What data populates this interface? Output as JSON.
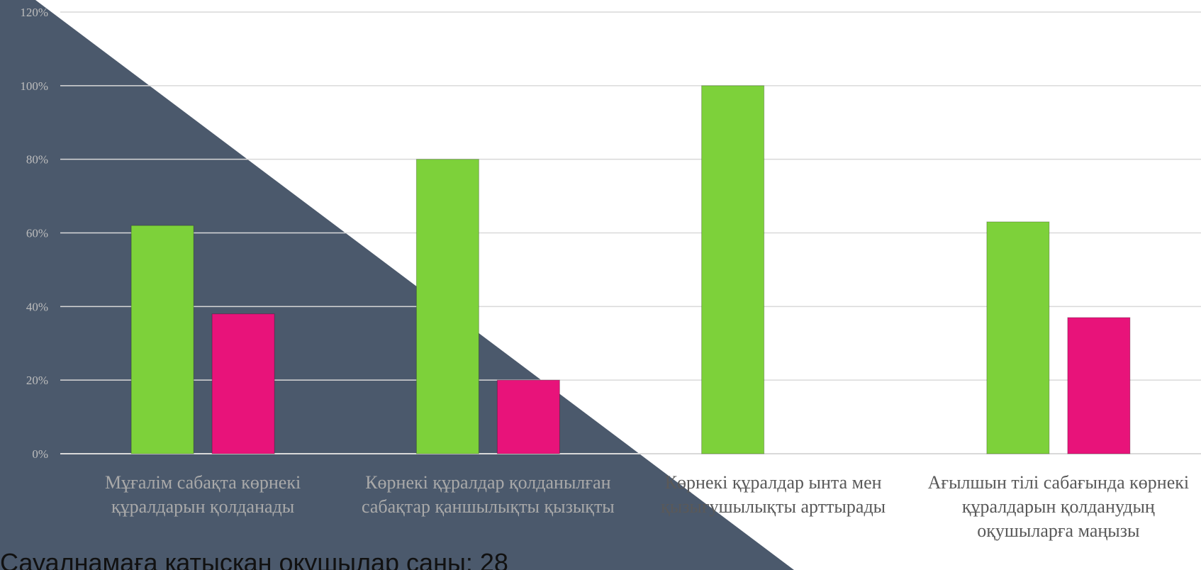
{
  "colors": {
    "background": "#ffffff",
    "overlay": "#4b596c",
    "series_1": "#7dd13a",
    "series_2": "#e8137a",
    "gridline": "#d9d9d9",
    "axis_text": "#595959"
  },
  "footer_text": "Сауалнамаға қатысқан оқушылар саны: 28",
  "chart_data": {
    "type": "bar",
    "title": "",
    "xlabel": "",
    "ylabel": "",
    "ylim": [
      0,
      1.2
    ],
    "yticks": [
      "0%",
      "20%",
      "40%",
      "60%",
      "80%",
      "100%",
      "120%"
    ],
    "grid": true,
    "legend": "none",
    "categories": [
      "Мұғалім сабақта көрнекі құралдарын қолданады",
      "Көрнекі құралдар қолданылған сабақтар қаншылықты қызықты",
      "Көрнекі құралдар ынта мен қызығушылықты арттырады",
      "Ағылшын тілі сабағында көрнекі құралдарын қолданудың оқушыларға маңызы"
    ],
    "series": [
      {
        "values": [
          0.62,
          0.8,
          1.0,
          0.63
        ]
      },
      {
        "values": [
          0.38,
          0.2,
          0.0,
          0.37
        ]
      }
    ]
  }
}
